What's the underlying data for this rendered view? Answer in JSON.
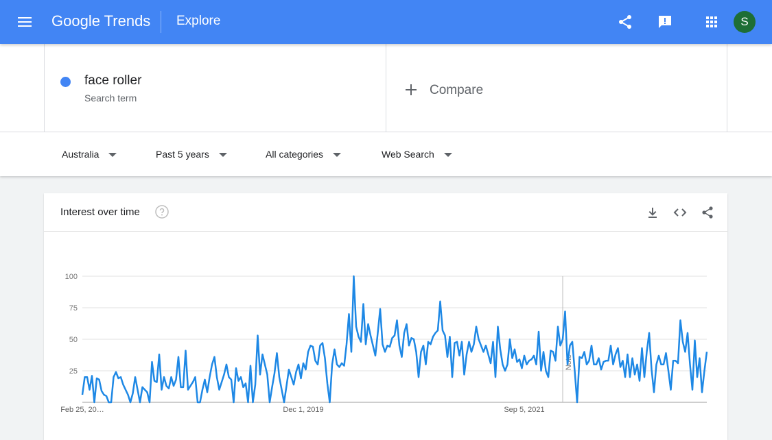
{
  "header": {
    "brand": "Google Trends",
    "section": "Explore",
    "avatar": "S"
  },
  "search": {
    "term": "face roller",
    "term_type": "Search term",
    "compare": "Compare"
  },
  "filters": [
    "Australia",
    "Past 5 years",
    "All categories",
    "Web Search"
  ],
  "card": {
    "title": "Interest over time"
  },
  "chart_data": {
    "type": "line",
    "color": "#1e88e5",
    "grid": true,
    "xlim": [
      0,
      260
    ],
    "xticks": [
      {
        "value": 0,
        "label": "Feb 25, 20…"
      },
      {
        "value": 92,
        "label": "Dec 1, 2019"
      },
      {
        "value": 184,
        "label": "Sep 5, 2021"
      }
    ],
    "ylim": [
      0,
      100
    ],
    "yticks": [
      25,
      50,
      75,
      100
    ],
    "annotations": [
      {
        "text": "Note",
        "x": 200
      }
    ],
    "values": [
      6,
      20,
      20,
      10,
      21,
      0,
      19,
      18,
      9,
      6,
      5,
      0,
      0,
      20,
      24,
      19,
      20,
      14,
      10,
      6,
      0,
      7,
      20,
      10,
      0,
      12,
      10,
      8,
      0,
      32,
      17,
      16,
      38,
      10,
      20,
      13,
      11,
      20,
      13,
      18,
      36,
      12,
      12,
      41,
      10,
      13,
      16,
      20,
      0,
      0,
      10,
      18,
      8,
      20,
      30,
      36,
      20,
      10,
      16,
      22,
      30,
      20,
      18,
      0,
      27,
      17,
      20,
      12,
      15,
      0,
      29,
      0,
      14,
      53,
      22,
      38,
      30,
      22,
      0,
      12,
      23,
      39,
      20,
      10,
      0,
      13,
      26,
      20,
      14,
      24,
      30,
      19,
      31,
      26,
      40,
      45,
      44,
      33,
      30,
      45,
      47,
      35,
      15,
      0,
      30,
      42,
      30,
      28,
      31,
      29,
      46,
      70,
      40,
      100,
      60,
      52,
      48,
      78,
      46,
      62,
      53,
      45,
      37,
      55,
      74,
      46,
      40,
      45,
      44,
      51,
      53,
      65,
      45,
      36,
      55,
      62,
      45,
      51,
      50,
      40,
      20,
      40,
      45,
      30,
      48,
      46,
      52,
      55,
      57,
      80,
      57,
      53,
      36,
      52,
      20,
      47,
      48,
      37,
      48,
      22,
      38,
      48,
      40,
      46,
      60,
      50,
      45,
      40,
      45,
      38,
      31,
      48,
      20,
      60,
      42,
      30,
      25,
      30,
      50,
      35,
      42,
      32,
      34,
      27,
      37,
      30,
      33,
      34,
      37,
      30,
      56,
      25,
      40,
      25,
      20,
      41,
      40,
      33,
      60,
      45,
      50,
      72,
      30,
      45,
      48,
      25,
      0,
      36,
      35,
      40,
      30,
      33,
      45,
      30,
      30,
      35,
      26,
      32,
      33,
      33,
      45,
      30,
      38,
      43,
      28,
      33,
      20,
      38,
      20,
      35,
      22,
      30,
      17,
      43,
      20,
      40,
      55,
      26,
      8,
      30,
      37,
      30,
      30,
      39,
      25,
      10,
      33,
      33,
      31,
      65,
      48,
      40,
      55,
      30,
      10,
      49,
      20,
      35,
      8,
      25,
      40
    ]
  }
}
